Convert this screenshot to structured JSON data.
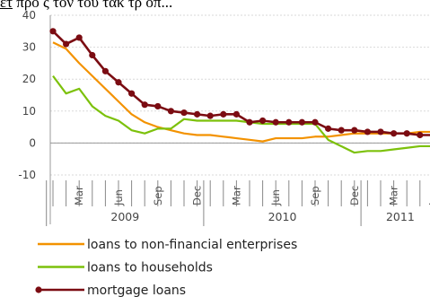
{
  "caption": {
    "underlined": "ἔτ",
    "rest": " προ ς τὸν τοῦ τάκ τρ οπ..."
  },
  "chart_data": {
    "type": "line",
    "ylim": [
      -10,
      40
    ],
    "yticks": [
      -10,
      0,
      10,
      20,
      30,
      40
    ],
    "ytick_labels": [
      "-10",
      "0",
      "10",
      "20",
      "30",
      "40"
    ],
    "month_labels": [
      {
        "i": 2,
        "label": "Mar"
      },
      {
        "i": 5,
        "label": "Jun"
      },
      {
        "i": 8,
        "label": "Sep"
      },
      {
        "i": 11,
        "label": "Dec"
      },
      {
        "i": 14,
        "label": "Mar"
      },
      {
        "i": 17,
        "label": "Jun"
      },
      {
        "i": 20,
        "label": "Sep"
      },
      {
        "i": 23,
        "label": "Dec"
      },
      {
        "i": 26,
        "label": "Mar"
      },
      {
        "i": 29,
        "label": "Jun"
      }
    ],
    "years": [
      {
        "label": "2009",
        "start": 0,
        "end": 11
      },
      {
        "label": "2010",
        "start": 12,
        "end": 23
      },
      {
        "label": "2011",
        "start": 24,
        "end": 29
      }
    ],
    "series": [
      {
        "name": "loans to non-financial enterprises",
        "color": "#f39200",
        "marker": false,
        "values": [
          31.5,
          29.5,
          25,
          21,
          17,
          13,
          9,
          6.5,
          5,
          4,
          3,
          2.5,
          2.5,
          2,
          1.5,
          1,
          0.5,
          1.5,
          1.5,
          1.5,
          2,
          2,
          2.5,
          3,
          3,
          3,
          3,
          3,
          3.5,
          3.5
        ]
      },
      {
        "name": "loans to households",
        "color": "#7cc10b",
        "marker": false,
        "values": [
          21,
          15.5,
          17,
          11.5,
          8.5,
          7,
          4,
          3,
          4.5,
          4.5,
          7.5,
          7,
          7,
          7,
          7,
          6.5,
          6,
          6,
          6,
          6,
          6,
          1,
          -1,
          -3,
          -2.5,
          -2.5,
          -2,
          -1.5,
          -1,
          -1
        ]
      },
      {
        "name": "mortgage loans",
        "color": "#7b0c12",
        "marker": true,
        "values": [
          35,
          31,
          33,
          27.5,
          22.5,
          19,
          15.5,
          12,
          11.5,
          10,
          9.5,
          9,
          8.5,
          9,
          9,
          6.5,
          7,
          6.5,
          6.5,
          6.5,
          6.5,
          4.5,
          4,
          4,
          3.5,
          3.5,
          3,
          3,
          2.5,
          2.5
        ]
      }
    ]
  }
}
